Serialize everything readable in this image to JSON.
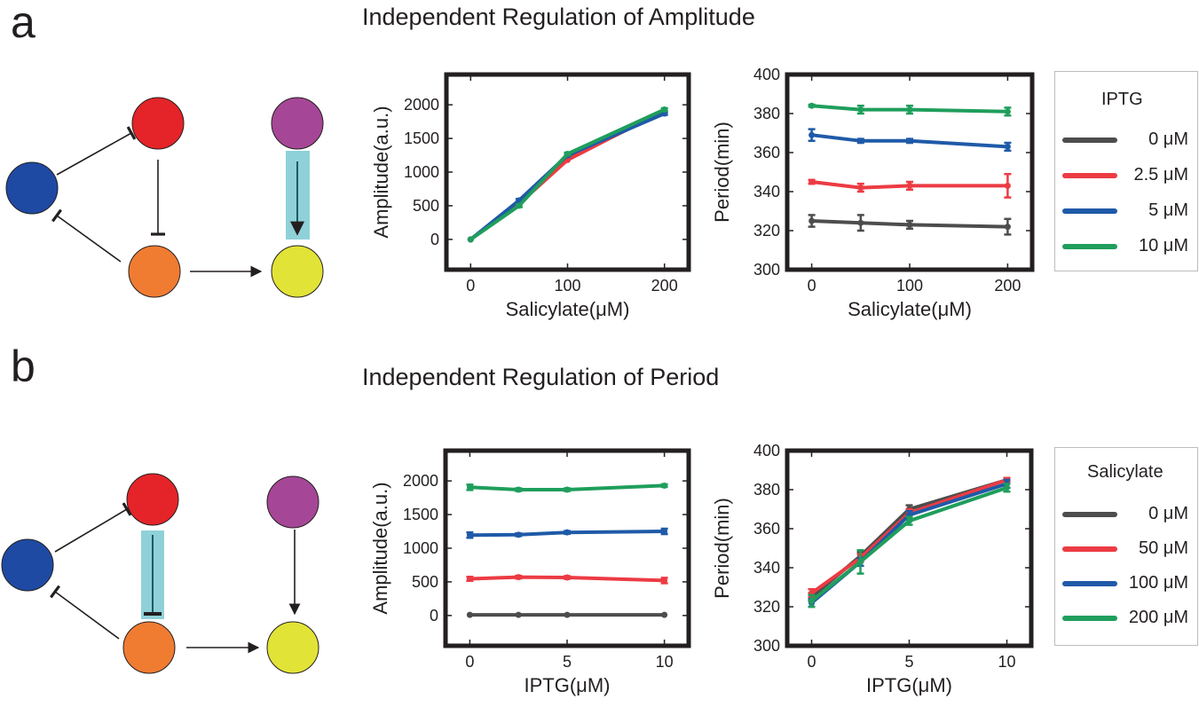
{
  "panel_a": {
    "label": "a",
    "title": "Independent Regulation of Amplitude",
    "legend": {
      "title": "IPTG",
      "items": [
        {
          "label": "0 μM",
          "color": "#4d4d4d"
        },
        {
          "label": "2.5 μM",
          "color": "#ec3b43"
        },
        {
          "label": "5 μM",
          "color": "#1f5aa8"
        },
        {
          "label": "10 μM",
          "color": "#1f9e5c"
        }
      ]
    }
  },
  "panel_b": {
    "label": "b",
    "title": "Independent Regulation of Period",
    "legend": {
      "title": "Salicylate",
      "items": [
        {
          "label": "0 μM",
          "color": "#4d4d4d"
        },
        {
          "label": "50 μM",
          "color": "#ec3b43"
        },
        {
          "label": "100 μM",
          "color": "#1f5aa8"
        },
        {
          "label": "200 μM",
          "color": "#1f9e5c"
        }
      ]
    }
  },
  "diagram_colors": {
    "blue_node": "#1e4aa3",
    "red_node": "#e42428",
    "orange_node": "#f07c32",
    "magenta_node": "#a54796",
    "yellow_node": "#e2e337",
    "highlight": "#8fd1d8"
  },
  "chart_data": [
    {
      "type": "line",
      "panel": "a",
      "xlabel": "Salicylate(μM)",
      "ylabel": "Amplitude(a.u.)",
      "x": [
        0,
        50,
        100,
        200
      ],
      "xticks": [
        0,
        100,
        200
      ],
      "xlim": [
        -25,
        225
      ],
      "yticks": [
        0,
        500,
        1000,
        1500,
        2000
      ],
      "ylim": [
        -450,
        2450
      ],
      "series": [
        {
          "name": "0 μM",
          "color": "#4d4d4d",
          "values": [
            0,
            560,
            1200,
            1900
          ],
          "err": [
            0,
            0,
            0,
            0
          ]
        },
        {
          "name": "2.5 μM",
          "color": "#ec3b43",
          "values": [
            0,
            530,
            1180,
            1920
          ],
          "err": [
            0,
            0,
            0,
            0
          ]
        },
        {
          "name": "5 μM",
          "color": "#1f5aa8",
          "values": [
            0,
            580,
            1250,
            1870
          ],
          "err": [
            0,
            20,
            20,
            20
          ]
        },
        {
          "name": "10 μM",
          "color": "#1f9e5c",
          "values": [
            0,
            500,
            1270,
            1930
          ],
          "err": [
            0,
            20,
            20,
            20
          ]
        }
      ]
    },
    {
      "type": "line",
      "panel": "a",
      "xlabel": "Salicylate(μM)",
      "ylabel": "Period(min)",
      "x": [
        0,
        50,
        100,
        200
      ],
      "xticks": [
        0,
        100,
        200
      ],
      "xlim": [
        -25,
        225
      ],
      "yticks": [
        300,
        320,
        340,
        360,
        380,
        400
      ],
      "ylim": [
        300,
        400
      ],
      "series": [
        {
          "name": "0 μM",
          "color": "#4d4d4d",
          "values": [
            325,
            324,
            323,
            322
          ],
          "err": [
            3,
            4,
            2,
            4
          ]
        },
        {
          "name": "2.5 μM",
          "color": "#ec3b43",
          "values": [
            345,
            342,
            343,
            343
          ],
          "err": [
            1,
            2,
            2,
            6
          ]
        },
        {
          "name": "5 μM",
          "color": "#1f5aa8",
          "values": [
            369,
            366,
            366,
            363
          ],
          "err": [
            3,
            1,
            1,
            2
          ]
        },
        {
          "name": "10 μM",
          "color": "#1f9e5c",
          "values": [
            384,
            382,
            382,
            381
          ],
          "err": [
            0.5,
            2,
            2,
            2
          ]
        }
      ]
    },
    {
      "type": "line",
      "panel": "b",
      "xlabel": "IPTG(μM)",
      "ylabel": "Amplitude(a.u.)",
      "x": [
        0,
        2.5,
        5,
        10
      ],
      "xticks": [
        0,
        5,
        10
      ],
      "xlim": [
        -1.25,
        11.25
      ],
      "yticks": [
        0,
        500,
        1000,
        1500,
        2000
      ],
      "ylim": [
        -450,
        2450
      ],
      "series": [
        {
          "name": "0 μM",
          "color": "#4d4d4d",
          "values": [
            10,
            10,
            10,
            10
          ],
          "err": [
            0,
            0,
            0,
            0
          ]
        },
        {
          "name": "50 μM",
          "color": "#ec3b43",
          "values": [
            545,
            570,
            565,
            520
          ],
          "err": [
            30,
            20,
            20,
            40
          ]
        },
        {
          "name": "100 μM",
          "color": "#1f5aa8",
          "values": [
            1195,
            1200,
            1235,
            1250
          ],
          "err": [
            40,
            20,
            20,
            40
          ]
        },
        {
          "name": "200 μM",
          "color": "#1f9e5c",
          "values": [
            1905,
            1870,
            1870,
            1930
          ],
          "err": [
            40,
            20,
            20,
            20
          ]
        }
      ]
    },
    {
      "type": "line",
      "panel": "b",
      "xlabel": "IPTG(μM)",
      "ylabel": "Period(min)",
      "x": [
        0,
        2.5,
        5,
        10
      ],
      "xticks": [
        0,
        5,
        10
      ],
      "xlim": [
        -1.25,
        11.25
      ],
      "yticks": [
        300,
        320,
        340,
        360,
        380,
        400
      ],
      "ylim": [
        300,
        400
      ],
      "series": [
        {
          "name": "0 μM",
          "color": "#4d4d4d",
          "values": [
            325,
            346,
            370,
            385
          ],
          "err": [
            2,
            2,
            2,
            1
          ]
        },
        {
          "name": "50 μM",
          "color": "#ec3b43",
          "values": [
            327,
            345,
            368,
            385
          ],
          "err": [
            2,
            2,
            2,
            1
          ]
        },
        {
          "name": "100 μM",
          "color": "#1f5aa8",
          "values": [
            322,
            343,
            367,
            383
          ],
          "err": [
            2,
            2,
            2,
            2
          ]
        },
        {
          "name": "200 μM",
          "color": "#1f9e5c",
          "values": [
            323,
            343,
            364,
            381
          ],
          "err": [
            3,
            6,
            2,
            2
          ]
        }
      ]
    }
  ]
}
